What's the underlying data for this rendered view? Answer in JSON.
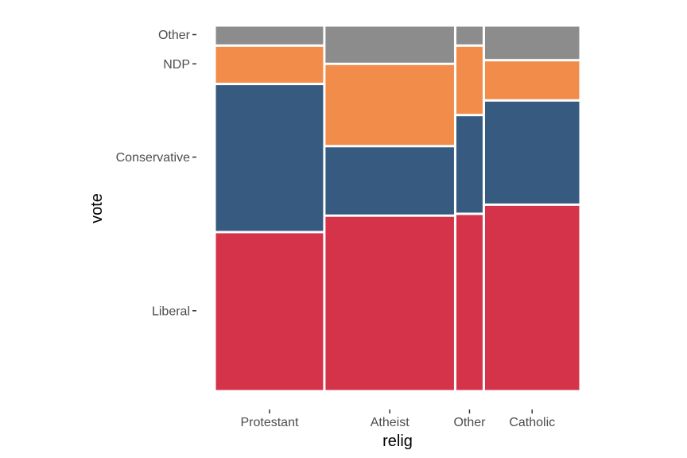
{
  "chart_data": {
    "type": "mosaic",
    "xlabel": "relig",
    "ylabel": "vote",
    "categories": [
      "Protestant",
      "Atheist",
      "Other",
      "Catholic"
    ],
    "widths": [
      0.295,
      0.352,
      0.077,
      0.26
    ],
    "vote_levels": [
      "Liberal",
      "Conservative",
      "NDP",
      "Other"
    ],
    "proportions": {
      "Protestant": [
        0.435,
        0.405,
        0.105,
        0.055
      ],
      "Atheist": [
        0.48,
        0.19,
        0.225,
        0.105
      ],
      "Other": [
        0.485,
        0.27,
        0.19,
        0.055
      ],
      "Catholic": [
        0.51,
        0.285,
        0.11,
        0.095
      ]
    },
    "y_ticks": [
      {
        "label": "Liberal",
        "value": 0.22
      },
      {
        "label": "Conservative",
        "value": 0.64
      },
      {
        "label": "NDP",
        "value": 0.895
      },
      {
        "label": "Other",
        "value": 0.975
      }
    ],
    "colors": {
      "Liberal": "#d5334a",
      "Conservative": "#365a80",
      "NDP": "#f28c4a",
      "Other": "#8c8c8c"
    },
    "grid": false,
    "legend": "none"
  }
}
